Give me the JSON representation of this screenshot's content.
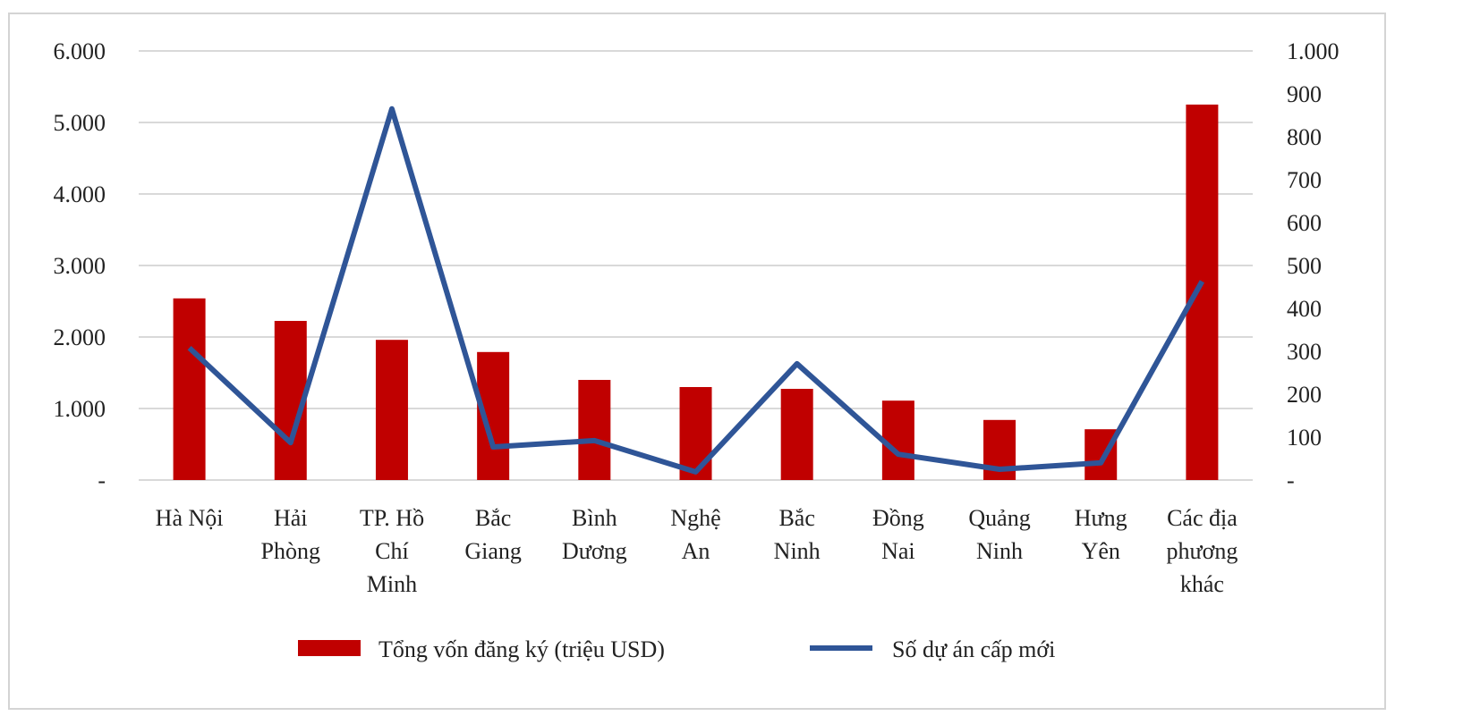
{
  "chart_data": {
    "type": "bar+line",
    "categories": [
      [
        "Hà Nội"
      ],
      [
        "Hải",
        "Phòng"
      ],
      [
        "TP. Hồ",
        "Chí",
        "Minh"
      ],
      [
        "Bắc",
        "Giang"
      ],
      [
        "Bình",
        "Dương"
      ],
      [
        "Nghệ",
        "An"
      ],
      [
        "Bắc",
        "Ninh"
      ],
      [
        "Đồng",
        "Nai"
      ],
      [
        "Quảng",
        "Ninh"
      ],
      [
        "Hưng",
        "Yên"
      ],
      [
        "Các địa",
        "phương",
        "khác"
      ]
    ],
    "series": [
      {
        "name": "Tổng vốn đăng ký (triệu  USD)",
        "type": "bar",
        "axis": "left",
        "color": "#c00000",
        "values": [
          2540,
          2225,
          1960,
          1790,
          1400,
          1300,
          1275,
          1110,
          840,
          710,
          5250
        ]
      },
      {
        "name": "Số dự án cấp mới",
        "type": "line",
        "axis": "right",
        "color": "#2f5597",
        "values": [
          308,
          87,
          865,
          77,
          92,
          19,
          271,
          60,
          25,
          40,
          463
        ]
      }
    ],
    "left_axis": {
      "ylim": [
        0,
        6000
      ],
      "ticks": [
        "-",
        "1.000",
        "2.000",
        "3.000",
        "4.000",
        "5.000",
        "6.000"
      ]
    },
    "right_axis": {
      "ylim": [
        0,
        1000
      ],
      "ticks": [
        "-",
        "100",
        "200",
        "300",
        "400",
        "500",
        "600",
        "700",
        "800",
        "900",
        "1.000"
      ]
    },
    "grid": true,
    "legend_position": "bottom"
  }
}
